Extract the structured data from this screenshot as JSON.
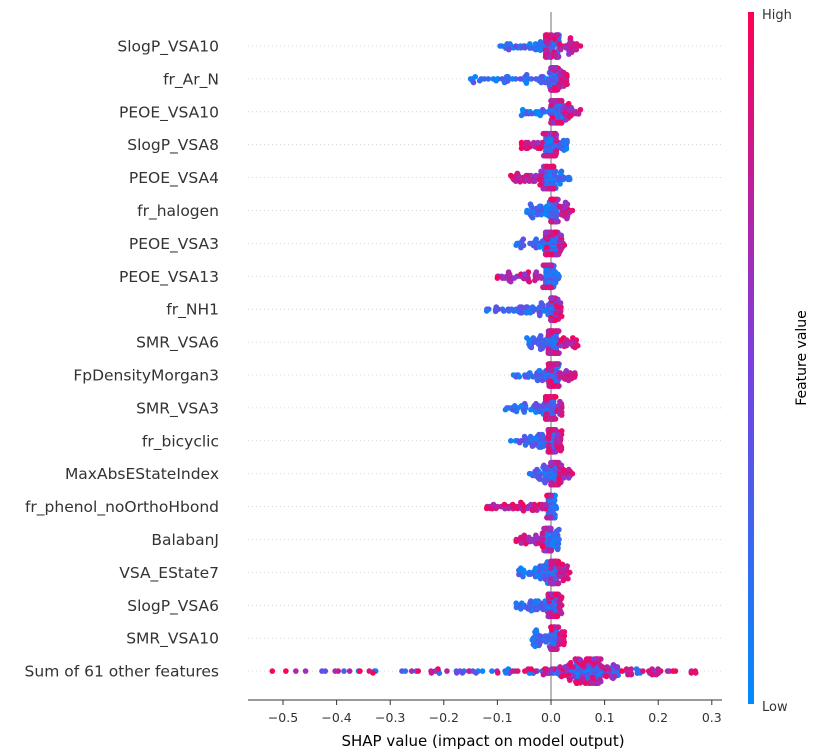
{
  "chart_data": {
    "type": "scatter",
    "subtype": "shap-beeswarm",
    "title": "",
    "xlabel": "SHAP value (impact on model output)",
    "ylabel": "",
    "xlim": [
      -0.57,
      0.31
    ],
    "xticks": [
      -0.5,
      -0.4,
      -0.3,
      -0.2,
      -0.1,
      0.0,
      0.1,
      0.2,
      0.3
    ],
    "xtick_labels": [
      "−0.5",
      "−0.4",
      "−0.3",
      "−0.2",
      "−0.1",
      "0.0",
      "0.1",
      "0.2",
      "0.3"
    ],
    "colorbar": {
      "title": "Feature value",
      "high_label": "High",
      "low_label": "Low",
      "low_color": "#008bfb",
      "high_color": "#ff0052"
    },
    "grid": false,
    "features": [
      {
        "name": "SlogP_VSA10",
        "low_range": [
          -0.095,
          0.015
        ],
        "high_range": [
          -0.01,
          0.055
        ],
        "min": -0.095,
        "max": 0.055
      },
      {
        "name": "fr_Ar_N",
        "low_range": [
          -0.15,
          0.01
        ],
        "high_range": [
          0.0,
          0.03
        ],
        "min": -0.15,
        "max": 0.03
      },
      {
        "name": "PEOE_VSA10",
        "low_range": [
          -0.055,
          0.02
        ],
        "high_range": [
          0.0,
          0.055
        ],
        "min": -0.055,
        "max": 0.055
      },
      {
        "name": "SlogP_VSA8",
        "low_range": [
          -0.01,
          0.03
        ],
        "high_range": [
          -0.055,
          0.01
        ],
        "min": -0.055,
        "max": 0.03
      },
      {
        "name": "PEOE_VSA4",
        "low_range": [
          -0.01,
          0.035
        ],
        "high_range": [
          -0.075,
          0.005
        ],
        "min": -0.075,
        "max": 0.035
      },
      {
        "name": "fr_halogen",
        "low_range": [
          -0.045,
          0.01
        ],
        "high_range": [
          0.0,
          0.04
        ],
        "min": -0.045,
        "max": 0.04
      },
      {
        "name": "PEOE_VSA3",
        "low_range": [
          -0.065,
          0.01
        ],
        "high_range": [
          -0.01,
          0.025
        ],
        "min": -0.065,
        "max": 0.025
      },
      {
        "name": "PEOE_VSA13",
        "low_range": [
          -0.01,
          0.015
        ],
        "high_range": [
          -0.1,
          0.0
        ],
        "min": -0.1,
        "max": 0.015
      },
      {
        "name": "fr_NH1",
        "low_range": [
          -0.12,
          0.01
        ],
        "high_range": [
          0.0,
          0.02
        ],
        "min": -0.12,
        "max": 0.02
      },
      {
        "name": "SMR_VSA6",
        "low_range": [
          -0.045,
          0.01
        ],
        "high_range": [
          -0.005,
          0.05
        ],
        "min": -0.045,
        "max": 0.05
      },
      {
        "name": "FpDensityMorgan3",
        "low_range": [
          -0.07,
          0.015
        ],
        "high_range": [
          -0.005,
          0.045
        ],
        "min": -0.07,
        "max": 0.045
      },
      {
        "name": "SMR_VSA3",
        "low_range": [
          -0.085,
          0.005
        ],
        "high_range": [
          -0.01,
          0.02
        ],
        "min": -0.085,
        "max": 0.02
      },
      {
        "name": "fr_bicyclic",
        "low_range": [
          -0.075,
          0.005
        ],
        "high_range": [
          -0.005,
          0.02
        ],
        "min": -0.075,
        "max": 0.02
      },
      {
        "name": "MaxAbsEStateIndex",
        "low_range": [
          -0.04,
          0.01
        ],
        "high_range": [
          0.0,
          0.04
        ],
        "min": -0.04,
        "max": 0.04
      },
      {
        "name": "fr_phenol_noOrthoHbond",
        "low_range": [
          -0.005,
          0.01
        ],
        "high_range": [
          -0.12,
          0.0
        ],
        "min": -0.12,
        "max": 0.01
      },
      {
        "name": "BalabanJ",
        "low_range": [
          -0.01,
          0.015
        ],
        "high_range": [
          -0.065,
          0.0
        ],
        "min": -0.065,
        "max": 0.015
      },
      {
        "name": "VSA_EState7",
        "low_range": [
          -0.06,
          0.01
        ],
        "high_range": [
          0.0,
          0.035
        ],
        "min": -0.06,
        "max": 0.035
      },
      {
        "name": "SlogP_VSA6",
        "low_range": [
          -0.065,
          0.01
        ],
        "high_range": [
          -0.005,
          0.02
        ],
        "min": -0.065,
        "max": 0.02
      },
      {
        "name": "SMR_VSA10",
        "low_range": [
          -0.035,
          0.01
        ],
        "high_range": [
          0.0,
          0.025
        ],
        "min": -0.035,
        "max": 0.025
      },
      {
        "name": "Sum of 61 other features",
        "low_range": [
          -0.46,
          0.2
        ],
        "high_range": [
          -0.52,
          0.27
        ],
        "min": -0.52,
        "max": 0.27
      }
    ]
  }
}
